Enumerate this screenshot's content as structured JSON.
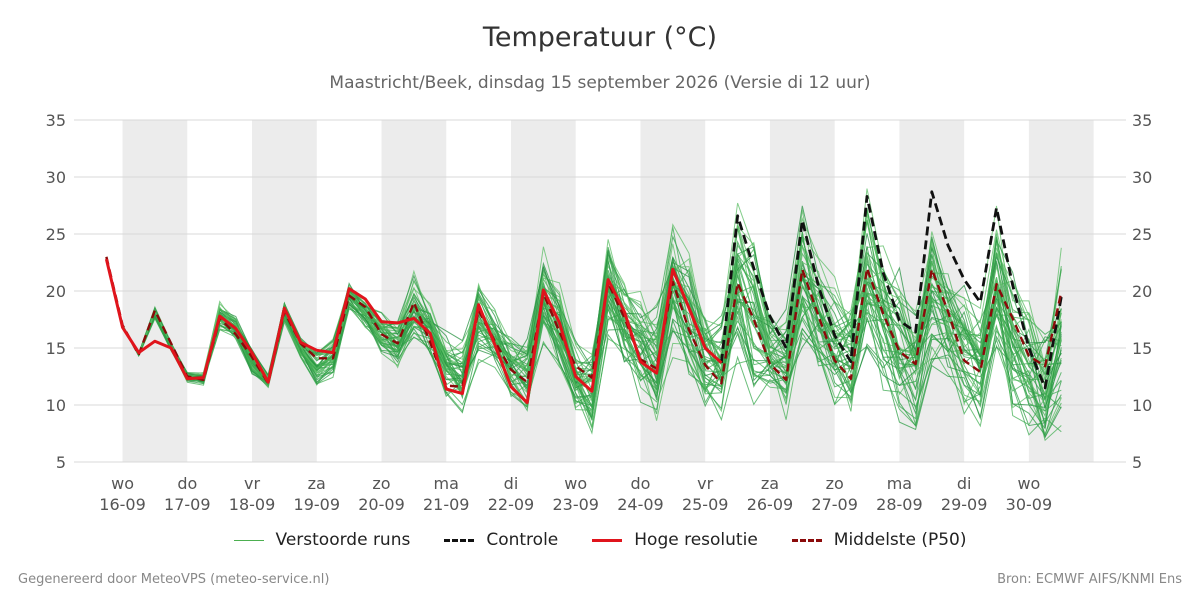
{
  "header": {
    "title": "Temperatuur (°C)",
    "subtitle": "Maastricht/Beek, dinsdag 15 september 2026 (Versie di 12 uur)"
  },
  "legend": [
    {
      "label": "Verstoorde runs",
      "color": "#4caf50",
      "style": "thin"
    },
    {
      "label": "Controle",
      "color": "#111111",
      "style": "dashed"
    },
    {
      "label": "Hoge resolutie",
      "color": "#e0141c",
      "style": "solid"
    },
    {
      "label": "Middelste (P50)",
      "color": "#8b0a0a",
      "style": "dashed"
    }
  ],
  "footer": {
    "left": "Gegenereerd door MeteoVPS (meteo-service.nl)",
    "right": "Bron: ECMWF AIFS/KNMI Ens"
  },
  "chart_data": {
    "type": "line",
    "ylim": [
      5,
      35
    ],
    "yticks": [
      5,
      10,
      15,
      20,
      25,
      30,
      35
    ],
    "xlim": [
      -0.75,
      15.5
    ],
    "x_unit": "days from wo 16-09 00:00",
    "xticks": [
      {
        "day": "wo",
        "date": "16-09"
      },
      {
        "day": "do",
        "date": "17-09"
      },
      {
        "day": "vr",
        "date": "18-09"
      },
      {
        "day": "za",
        "date": "19-09"
      },
      {
        "day": "zo",
        "date": "20-09"
      },
      {
        "day": "ma",
        "date": "21-09"
      },
      {
        "day": "di",
        "date": "22-09"
      },
      {
        "day": "wo",
        "date": "23-09"
      },
      {
        "day": "do",
        "date": "24-09"
      },
      {
        "day": "vr",
        "date": "25-09"
      },
      {
        "day": "za",
        "date": "26-09"
      },
      {
        "day": "zo",
        "date": "27-09"
      },
      {
        "day": "ma",
        "date": "28-09"
      },
      {
        "day": "di",
        "date": "29-09"
      },
      {
        "day": "wo",
        "date": "30-09"
      }
    ],
    "shaded_days": [
      0,
      2,
      4,
      6,
      8,
      10,
      12,
      14
    ],
    "grid": true,
    "legend_position": "bottom",
    "series": [
      {
        "name": "Hoge resolutie",
        "color": "#e0141c",
        "x": [
          -0.25,
          0,
          0.25,
          0.5,
          0.75,
          1,
          1.25,
          1.5,
          1.75,
          2,
          2.25,
          2.5,
          2.75,
          3,
          3.25,
          3.5,
          3.75,
          4,
          4.25,
          4.5,
          4.75,
          5,
          5.25,
          5.5,
          5.75,
          6,
          6.25,
          6.5,
          6.75,
          7,
          7.25,
          7.5,
          7.75,
          8,
          8.25,
          8.5,
          8.75,
          9,
          9.25
        ],
        "values": [
          22.8,
          16.8,
          14.6,
          15.6,
          15.0,
          12.3,
          12.4,
          17.8,
          16.7,
          14.6,
          12.0,
          18.5,
          15.5,
          14.8,
          14.6,
          20.2,
          19.3,
          17.3,
          17.2,
          17.6,
          16.3,
          11.4,
          11.0,
          18.8,
          15.3,
          11.6,
          10.2,
          20.1,
          17.2,
          12.5,
          11.2,
          21.0,
          18.2,
          13.8,
          12.8,
          21.9,
          18.5,
          15.0,
          13.7
        ]
      },
      {
        "name": "Controle",
        "color": "#111111",
        "x": [
          9.25,
          9.5,
          9.75,
          10,
          10.25,
          10.5,
          10.75,
          11,
          11.25,
          11.5,
          11.75,
          12,
          12.25,
          12.5,
          12.75,
          13,
          13.25,
          13.5,
          13.75,
          14,
          14.25,
          14.5
        ],
        "values": [
          13.7,
          26.6,
          22.0,
          17.8,
          15.0,
          26.2,
          20.4,
          16.1,
          13.8,
          28.3,
          21.6,
          17.4,
          16.4,
          28.7,
          24.0,
          21.0,
          19.0,
          27.3,
          20.5,
          15.0,
          11.5,
          19.5
        ]
      },
      {
        "name": "Middelste (P50)",
        "color": "#8b0a0a",
        "x": [
          -0.25,
          0,
          0.25,
          0.5,
          0.75,
          1,
          1.25,
          1.5,
          1.75,
          2,
          2.25,
          2.5,
          2.75,
          3,
          3.25,
          3.5,
          3.75,
          4,
          4.25,
          4.5,
          4.75,
          5,
          5.25,
          5.5,
          5.75,
          6,
          6.25,
          6.5,
          6.75,
          7,
          7.25,
          7.5,
          7.75,
          8,
          8.25,
          8.5,
          8.75,
          9,
          9.25,
          9.5,
          9.75,
          10,
          10.25,
          10.5,
          10.75,
          11,
          11.25,
          11.5,
          11.75,
          12,
          12.25,
          12.5,
          12.75,
          13,
          13.25,
          13.5,
          13.75,
          14,
          14.25,
          14.5
        ],
        "values": [
          23.0,
          17.0,
          14.4,
          18.3,
          15.4,
          12.5,
          12.2,
          17.6,
          16.2,
          14.2,
          11.9,
          18.2,
          15.4,
          14.1,
          14.1,
          19.6,
          18.6,
          16.2,
          15.4,
          19.0,
          15.5,
          11.7,
          11.6,
          18.3,
          15.6,
          13.1,
          12.0,
          19.8,
          16.4,
          13.4,
          12.4,
          20.7,
          17.7,
          14.0,
          13.2,
          20.8,
          16.6,
          13.5,
          11.9,
          20.7,
          17.5,
          13.6,
          12.2,
          21.9,
          17.8,
          13.9,
          12.3,
          22.0,
          18.0,
          14.7,
          13.6,
          21.9,
          18.2,
          13.9,
          12.9,
          20.6,
          17.6,
          14.3,
          13.4,
          19.9
        ]
      }
    ],
    "ensemble": {
      "name": "Verstoorde runs",
      "color": "#2e9e45",
      "member_count": 48,
      "x_start": -0.25,
      "x_step": 0.25,
      "envelope_min": [
        22.0,
        16.4,
        14.0,
        16.9,
        14.4,
        11.8,
        11.7,
        16.4,
        15.4,
        12.4,
        11.4,
        17.2,
        14.1,
        11.6,
        12.3,
        18.2,
        16.5,
        14.4,
        12.8,
        15.1,
        13.8,
        10.5,
        8.9,
        13.4,
        12.6,
        10.0,
        8.7,
        14.8,
        12.8,
        8.7,
        6.2,
        15.0,
        12.8,
        9.6,
        7.5,
        12.7,
        11.5,
        8.7,
        8.0,
        12.4,
        9.3,
        9.6,
        7.9,
        13.1,
        11.7,
        8.6,
        8.2,
        13.2,
        10.8,
        8.0,
        6.8,
        12.5,
        11.4,
        8.6,
        7.6,
        13.2,
        8.1,
        6.6,
        5.0,
        6.5
      ],
      "envelope_max": [
        23.7,
        17.5,
        14.9,
        19.4,
        15.8,
        13.2,
        13.1,
        19.3,
        18.2,
        15.4,
        12.8,
        19.5,
        16.2,
        15.5,
        16.4,
        21.2,
        19.8,
        18.5,
        18.1,
        22.6,
        20.0,
        17.2,
        16.7,
        22.5,
        19.6,
        17.1,
        17.0,
        24.7,
        21.5,
        16.6,
        16.7,
        26.6,
        22.3,
        21.3,
        20.2,
        29.2,
        25.1,
        20.0,
        19.6,
        30.5,
        26.8,
        20.5,
        19.6,
        29.5,
        24.5,
        22.6,
        21.2,
        31.3,
        25.6,
        23.4,
        20.4,
        28.5,
        24.6,
        22.2,
        20.1,
        28.8,
        24.2,
        20.5,
        19.2,
        26.8
      ]
    }
  }
}
